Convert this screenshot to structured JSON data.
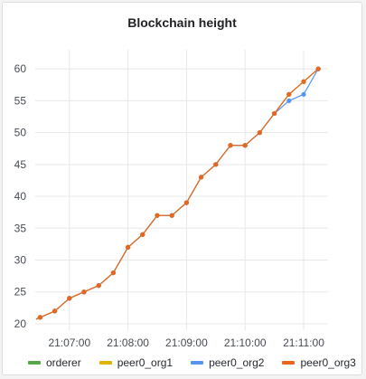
{
  "chart_data": {
    "type": "line",
    "title": "Blockchain height",
    "xlabel": "",
    "ylabel": "",
    "ylim": [
      19,
      63
    ],
    "yticks": [
      20,
      25,
      30,
      35,
      40,
      45,
      50,
      55,
      60
    ],
    "xlim": [
      "21:06:25",
      "21:11:25"
    ],
    "xticks": [
      "21:07:00",
      "21:08:00",
      "21:09:00",
      "21:10:00",
      "21:11:00"
    ],
    "grid": true,
    "legend_position": "bottom",
    "series": [
      {
        "name": "orderer",
        "color": "#56a64b",
        "x": [
          "21:06:30",
          "21:06:45",
          "21:07:00",
          "21:07:15",
          "21:07:30",
          "21:07:45",
          "21:08:00",
          "21:08:15",
          "21:08:30",
          "21:08:45",
          "21:09:00",
          "21:09:15",
          "21:09:30",
          "21:09:45",
          "21:10:00",
          "21:10:15",
          "21:10:30",
          "21:10:45",
          "21:11:00",
          "21:11:15"
        ],
        "values": [
          21,
          22,
          24,
          25,
          26,
          28,
          32,
          34,
          37,
          37,
          39,
          43,
          45,
          48,
          48,
          50,
          53,
          56,
          58,
          60
        ]
      },
      {
        "name": "peer0_org1",
        "color": "#e0b400",
        "x": [
          "21:06:30",
          "21:06:45",
          "21:07:00",
          "21:07:15",
          "21:07:30",
          "21:07:45",
          "21:08:00",
          "21:08:15",
          "21:08:30",
          "21:08:45",
          "21:09:00",
          "21:09:15",
          "21:09:30",
          "21:09:45",
          "21:10:00",
          "21:10:15",
          "21:10:30",
          "21:10:45",
          "21:11:00",
          "21:11:15"
        ],
        "values": [
          21,
          22,
          24,
          25,
          26,
          28,
          32,
          34,
          37,
          37,
          39,
          43,
          45,
          48,
          48,
          50,
          53,
          56,
          58,
          60
        ]
      },
      {
        "name": "peer0_org2",
        "color": "#5794f2",
        "x": [
          "21:06:30",
          "21:06:45",
          "21:07:00",
          "21:07:15",
          "21:07:30",
          "21:07:45",
          "21:08:00",
          "21:08:15",
          "21:08:30",
          "21:08:45",
          "21:09:00",
          "21:09:15",
          "21:09:30",
          "21:09:45",
          "21:10:00",
          "21:10:15",
          "21:10:30",
          "21:10:45",
          "21:11:00",
          "21:11:15"
        ],
        "values": [
          21,
          22,
          24,
          25,
          26,
          28,
          32,
          34,
          37,
          37,
          39,
          43,
          45,
          48,
          48,
          50,
          53,
          55,
          56,
          60
        ]
      },
      {
        "name": "peer0_org3",
        "color": "#e8661f",
        "x": [
          "21:06:30",
          "21:06:45",
          "21:07:00",
          "21:07:15",
          "21:07:30",
          "21:07:45",
          "21:08:00",
          "21:08:15",
          "21:08:30",
          "21:08:45",
          "21:09:00",
          "21:09:15",
          "21:09:30",
          "21:09:45",
          "21:10:00",
          "21:10:15",
          "21:10:30",
          "21:10:45",
          "21:11:00",
          "21:11:15"
        ],
        "values": [
          21,
          22,
          24,
          25,
          26,
          28,
          32,
          34,
          37,
          37,
          39,
          43,
          45,
          48,
          48,
          50,
          53,
          56,
          58,
          60
        ]
      }
    ]
  }
}
